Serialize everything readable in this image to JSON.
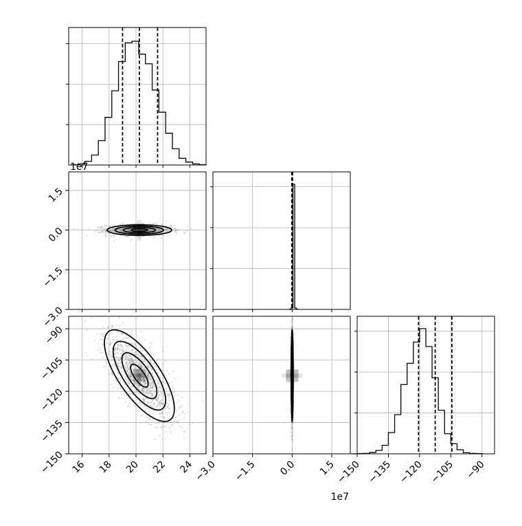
{
  "chart_data": {
    "type": "corner",
    "parameters": [
      {
        "name": "p0",
        "axis_label": "",
        "lim": [
          15.0,
          25.2
        ],
        "ticks": [
          "16",
          "18",
          "20",
          "22",
          "24"
        ],
        "tick_values": [
          16,
          18,
          20,
          22,
          24
        ],
        "offset_text": "",
        "quantiles": [
          19.0,
          20.25,
          21.6
        ]
      },
      {
        "name": "p1",
        "axis_label": "",
        "lim": [
          -30000000,
          22000000
        ],
        "ticks": [
          "−3.0",
          "−1.5",
          "0.0",
          "1.5"
        ],
        "tick_values": [
          -30000000,
          -15000000,
          0,
          15000000
        ],
        "offset_text": "1e7",
        "quantiles": [
          -150000,
          0,
          150000
        ]
      },
      {
        "name": "p2",
        "axis_label": "",
        "lim": [
          -150,
          -84
        ],
        "ticks": [
          "−150",
          "−135",
          "−120",
          "−105",
          "−90"
        ],
        "tick_values": [
          -150,
          -135,
          -120,
          -105,
          -90
        ],
        "offset_text": "",
        "quantiles": [
          -120.5,
          -112.5,
          -104.5
        ]
      }
    ],
    "histograms": [
      {
        "param": "p0",
        "edges_start": 15.2,
        "bin_width": 0.5,
        "counts": [
          1,
          3,
          10,
          27,
          66,
          129,
          201,
          280,
          331,
          335,
          300,
          274,
          203,
          143,
          86,
          44,
          18,
          8,
          3,
          1
        ]
      },
      {
        "param": "p1",
        "edges_start": -1000000,
        "bin_width": 650000,
        "counts": [
          2,
          12,
          995,
          11,
          1
        ]
      },
      {
        "param": "p2",
        "edges_start": -153,
        "bin_width": 3,
        "counts": [
          0,
          1,
          2,
          6,
          15,
          38,
          95,
          175,
          310,
          405,
          500,
          560,
          480,
          340,
          195,
          90,
          45,
          18,
          5,
          2,
          1
        ]
      }
    ],
    "joint": [
      {
        "x": "p0",
        "y": "p1",
        "mean": [
          20.25,
          0
        ],
        "sd": [
          1.2,
          1000000
        ],
        "corr": 0.0,
        "levels": [
          "0.5σ",
          "1σ",
          "1.5σ",
          "2σ"
        ]
      },
      {
        "x": "p0",
        "y": "p2",
        "mean": [
          20.25,
          -112.5
        ],
        "sd": [
          1.3,
          11
        ],
        "corr": -0.72,
        "levels": [
          "0.5σ",
          "1σ",
          "1.5σ",
          "2σ"
        ]
      },
      {
        "x": "p1",
        "y": "p2",
        "mean": [
          0,
          -112.5
        ],
        "sd": [
          200000,
          11
        ],
        "corr": 0.0,
        "levels": [
          "0.5σ",
          "1σ",
          "1.5σ",
          "2σ"
        ]
      }
    ],
    "grid": true,
    "style": {
      "line_color": "#000000",
      "grid_color": "#b0b0b0",
      "point_color": "#9a9a9a"
    }
  }
}
